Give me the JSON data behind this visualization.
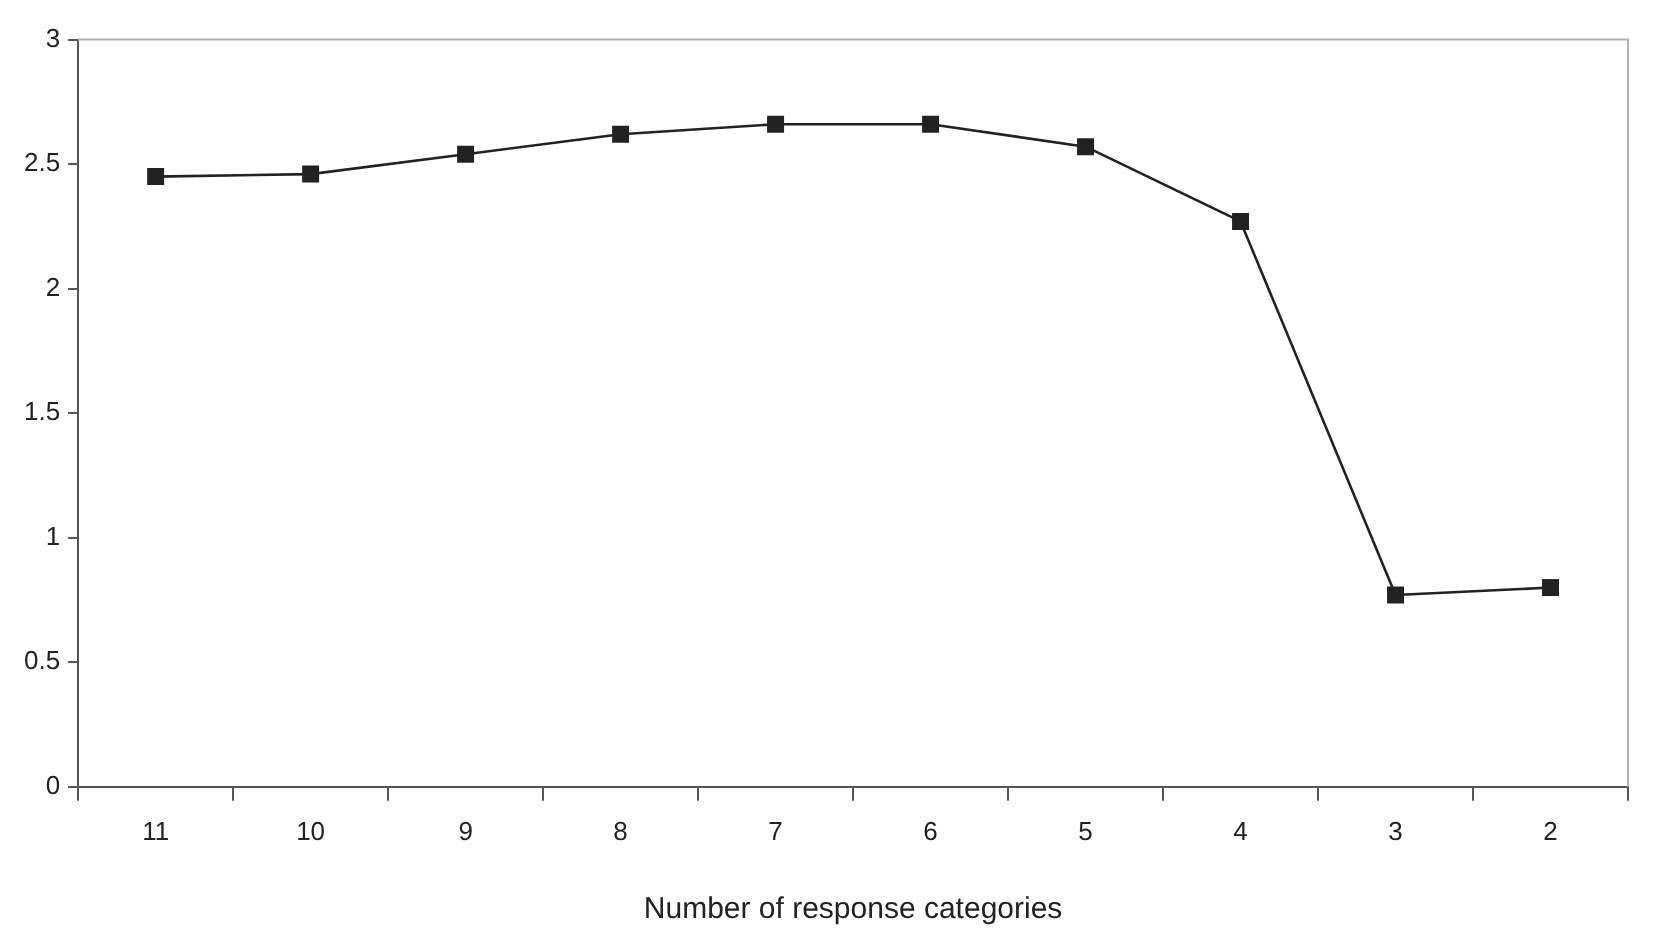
{
  "chart_data": {
    "type": "line",
    "xlabel": "Number of response categories",
    "categories": [
      "11",
      "10",
      "9",
      "8",
      "7",
      "6",
      "5",
      "4",
      "3",
      "2"
    ],
    "series": [
      {
        "color": "#222222",
        "values": [
          2.45,
          2.46,
          2.54,
          2.62,
          2.66,
          2.66,
          2.57,
          2.27,
          0.77,
          0.8
        ]
      }
    ],
    "ylim": [
      0,
      3
    ],
    "yticks": [
      0,
      0.5,
      1,
      1.5,
      2,
      2.5,
      3
    ],
    "grid": false,
    "legend": false,
    "marker": "square",
    "line_style": "solid"
  }
}
